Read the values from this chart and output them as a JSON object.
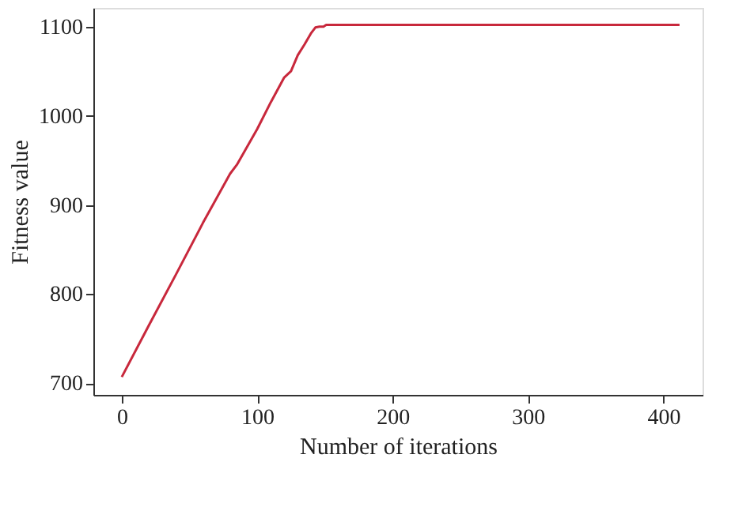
{
  "chart_data": {
    "type": "line",
    "xlabel": "Number of iterations",
    "ylabel": "Fitness value",
    "x": [
      0,
      20,
      40,
      60,
      80,
      85,
      100,
      110,
      120,
      125,
      130,
      135,
      140,
      143,
      146,
      149,
      151,
      200,
      300,
      412
    ],
    "series": [
      {
        "color": "#c8283c",
        "values": [
          707,
          765,
          822,
          880,
          935,
          945,
          985,
          1015,
          1043,
          1050,
          1068,
          1080,
          1093,
          1099,
          1100,
          1100,
          1102,
          1102,
          1102,
          1102
        ]
      }
    ],
    "xlim": [
      -21,
      429
    ],
    "ylim": [
      687,
      1121
    ],
    "xticks": [
      0,
      100,
      200,
      300,
      400
    ],
    "yticks": [
      700,
      800,
      900,
      1000,
      1100
    ],
    "grid": false,
    "marker": "none",
    "line_style": "solid"
  }
}
